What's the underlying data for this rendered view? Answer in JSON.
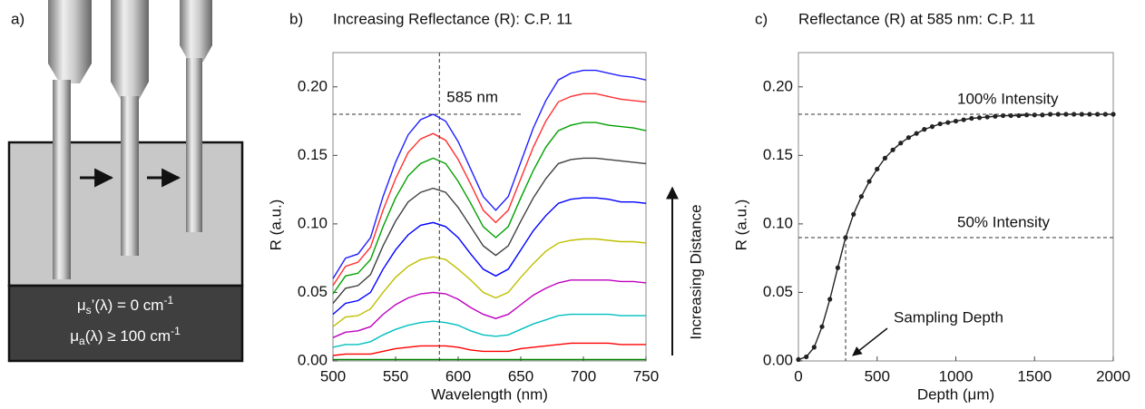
{
  "panel_a": {
    "label": "a)",
    "mu_s": {
      "base": "μ",
      "sub": "s",
      "text": "’(λ) = 0 cm",
      "sup": "-1"
    },
    "mu_a": {
      "base": "μ",
      "sub": "a",
      "text": "(λ) ≥ 100 cm",
      "sup": "-1"
    }
  },
  "chart_data": [
    {
      "type": "line",
      "panel_label": "b)",
      "title": "Increasing Reflectance (R): C.P. 11",
      "x_label": "Wavelength (nm)",
      "y_label": "R (a.u.)",
      "annotations": [
        "585 nm",
        "Increasing Distance"
      ],
      "hlines": [
        0.18
      ],
      "vlines": [
        585
      ],
      "xlim": [
        500,
        750
      ],
      "xticks": [
        500,
        550,
        600,
        650,
        700,
        750
      ],
      "ylim": [
        0,
        0.225
      ],
      "yticks": [
        {
          "value": 0,
          "label": "0.00"
        },
        0.05,
        {
          "value": 0.1,
          "label": "0.10"
        },
        0.15,
        {
          "value": 0.2,
          "label": "0.20"
        }
      ],
      "x": [
        500,
        510,
        520,
        530,
        540,
        550,
        560,
        570,
        580,
        590,
        600,
        610,
        620,
        630,
        640,
        650,
        660,
        670,
        680,
        690,
        700,
        710,
        720,
        730,
        740,
        750
      ],
      "series": [
        {
          "color": "#008000",
          "values": [
            0.001,
            0.001,
            0.001,
            0.001,
            0.001,
            0.001,
            0.001,
            0.001,
            0.001,
            0.001,
            0.001,
            0.001,
            0.001,
            0.001,
            0.001,
            0.001,
            0.001,
            0.001,
            0.001,
            0.001,
            0.001,
            0.001,
            0.001,
            0.001,
            0.001,
            0.001
          ]
        },
        {
          "color": "#ff0000",
          "values": [
            0.004,
            0.005,
            0.005,
            0.005,
            0.007,
            0.009,
            0.01,
            0.011,
            0.011,
            0.011,
            0.01,
            0.008,
            0.007,
            0.007,
            0.007,
            0.009,
            0.01,
            0.011,
            0.012,
            0.013,
            0.013,
            0.013,
            0.013,
            0.012,
            0.012,
            0.012
          ]
        },
        {
          "color": "#00bfbf",
          "values": [
            0.01,
            0.012,
            0.012,
            0.014,
            0.019,
            0.023,
            0.026,
            0.028,
            0.029,
            0.028,
            0.026,
            0.022,
            0.019,
            0.018,
            0.019,
            0.023,
            0.027,
            0.03,
            0.033,
            0.034,
            0.034,
            0.034,
            0.034,
            0.033,
            0.033,
            0.033
          ]
        },
        {
          "color": "#bf00bf",
          "values": [
            0.017,
            0.021,
            0.022,
            0.025,
            0.034,
            0.041,
            0.046,
            0.049,
            0.05,
            0.049,
            0.045,
            0.039,
            0.034,
            0.031,
            0.034,
            0.041,
            0.048,
            0.053,
            0.057,
            0.059,
            0.059,
            0.059,
            0.059,
            0.058,
            0.058,
            0.057
          ]
        },
        {
          "color": "#bfbf00",
          "values": [
            0.025,
            0.032,
            0.033,
            0.038,
            0.05,
            0.061,
            0.069,
            0.074,
            0.076,
            0.074,
            0.067,
            0.059,
            0.05,
            0.046,
            0.05,
            0.061,
            0.071,
            0.08,
            0.086,
            0.088,
            0.089,
            0.089,
            0.088,
            0.087,
            0.087,
            0.086
          ]
        },
        {
          "color": "#0000ff",
          "values": [
            0.034,
            0.042,
            0.044,
            0.05,
            0.067,
            0.081,
            0.092,
            0.099,
            0.101,
            0.098,
            0.09,
            0.078,
            0.067,
            0.062,
            0.067,
            0.081,
            0.095,
            0.106,
            0.115,
            0.118,
            0.119,
            0.119,
            0.118,
            0.116,
            0.116,
            0.115
          ]
        },
        {
          "color": "#404040",
          "values": [
            0.042,
            0.053,
            0.055,
            0.063,
            0.084,
            0.102,
            0.116,
            0.123,
            0.126,
            0.123,
            0.112,
            0.098,
            0.084,
            0.077,
            0.084,
            0.102,
            0.119,
            0.133,
            0.144,
            0.147,
            0.148,
            0.148,
            0.147,
            0.146,
            0.145,
            0.144
          ]
        },
        {
          "color": "#00a000",
          "values": [
            0.049,
            0.062,
            0.064,
            0.074,
            0.098,
            0.119,
            0.135,
            0.144,
            0.148,
            0.144,
            0.131,
            0.115,
            0.098,
            0.09,
            0.098,
            0.119,
            0.139,
            0.156,
            0.168,
            0.172,
            0.174,
            0.174,
            0.172,
            0.171,
            0.17,
            0.168
          ]
        },
        {
          "color": "#ff3030",
          "values": [
            0.055,
            0.069,
            0.072,
            0.083,
            0.11,
            0.133,
            0.152,
            0.162,
            0.166,
            0.161,
            0.147,
            0.129,
            0.11,
            0.101,
            0.11,
            0.133,
            0.156,
            0.175,
            0.189,
            0.193,
            0.195,
            0.195,
            0.193,
            0.191,
            0.19,
            0.189
          ]
        },
        {
          "color": "#2020ff",
          "values": [
            0.06,
            0.075,
            0.078,
            0.09,
            0.12,
            0.145,
            0.165,
            0.176,
            0.18,
            0.175,
            0.16,
            0.14,
            0.12,
            0.11,
            0.12,
            0.145,
            0.17,
            0.19,
            0.205,
            0.21,
            0.212,
            0.212,
            0.21,
            0.208,
            0.207,
            0.205
          ]
        }
      ]
    },
    {
      "type": "line",
      "panel_label": "c)",
      "title": "Reflectance (R) at 585 nm: C.P. 11",
      "x_label": "Depth (μm)",
      "y_label": "R (a.u.)",
      "annotations": [
        "100% Intensity",
        "50% Intensity",
        "Sampling Depth"
      ],
      "hlines": [
        0.18,
        0.09
      ],
      "vlines": [
        300
      ],
      "markers": true,
      "xlim": [
        0,
        2000
      ],
      "xticks": [
        0,
        500,
        1000,
        1500,
        2000
      ],
      "ylim": [
        0,
        0.225
      ],
      "yticks": [
        {
          "value": 0,
          "label": "0.00"
        },
        0.05,
        {
          "value": 0.1,
          "label": "0.10"
        },
        0.15,
        {
          "value": 0.2,
          "label": "0.20"
        }
      ],
      "x": [
        0,
        50,
        100,
        150,
        200,
        250,
        300,
        350,
        400,
        450,
        500,
        550,
        600,
        650,
        700,
        750,
        800,
        850,
        900,
        950,
        1000,
        1050,
        1100,
        1150,
        1200,
        1250,
        1300,
        1350,
        1400,
        1450,
        1500,
        1550,
        1600,
        1650,
        1700,
        1750,
        1800,
        1850,
        1900,
        1950,
        2000
      ],
      "series": [
        {
          "color": "#222222",
          "values": [
            0.001,
            0.003,
            0.01,
            0.025,
            0.045,
            0.068,
            0.09,
            0.107,
            0.12,
            0.131,
            0.14,
            0.148,
            0.154,
            0.159,
            0.163,
            0.166,
            0.169,
            0.171,
            0.173,
            0.174,
            0.175,
            0.176,
            0.177,
            0.1775,
            0.178,
            0.1785,
            0.179,
            0.179,
            0.179,
            0.1795,
            0.1795,
            0.1795,
            0.18,
            0.18,
            0.18,
            0.18,
            0.18,
            0.18,
            0.18,
            0.18,
            0.18
          ]
        }
      ]
    }
  ]
}
